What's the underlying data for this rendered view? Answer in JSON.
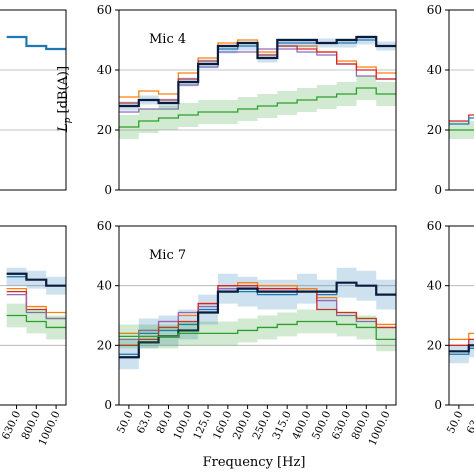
{
  "chart_data": {
    "type": "line",
    "style": "step",
    "xlabel": "Frequency [Hz]",
    "ylabel": "L_p [dB(A)]",
    "ylim": [
      0,
      60
    ],
    "yticks": [
      0,
      20,
      40,
      60
    ],
    "grid": "horizontal",
    "categories": [
      "50.0",
      "63.0",
      "80.0",
      "100.0",
      "125.0",
      "160.0",
      "200.0",
      "250.0",
      "315.0",
      "400.0",
      "500.0",
      "630.0",
      "800.0",
      "1000.0"
    ],
    "colors": [
      "#1f77b4",
      "#ff7f0e",
      "#2ca02c",
      "#d62728",
      "#9467bd",
      "#0b1b3b"
    ],
    "panels": [
      {
        "id": "left-top",
        "title": "",
        "series": [
          {
            "color": "#1f77b4",
            "values": [
              null,
              null,
              null,
              null,
              null,
              null,
              null,
              null,
              null,
              null,
              null,
              51,
              48,
              47
            ]
          }
        ]
      },
      {
        "id": "mic4",
        "title": "Mic 4",
        "series": [
          {
            "color": "#ff7f0e",
            "values": [
              31,
              33,
              32,
              39,
              44,
              49,
              50,
              46,
              48,
              48,
              46,
              43,
              41,
              39
            ]
          },
          {
            "color": "#9467bd",
            "values": [
              26,
              27,
              27,
              35,
              41,
              46,
              46,
              47,
              47,
              46,
              45,
              42,
              38,
              37
            ]
          },
          {
            "color": "#d62728",
            "values": [
              29,
              30,
              30,
              37,
              43,
              48,
              49,
              45,
              48,
              47,
              46,
              42,
              40,
              37
            ]
          },
          {
            "color": "#1f77b4",
            "values": [
              28,
              30,
              29,
              36,
              42,
              47,
              48,
              44,
              49,
              49,
              49,
              49,
              50,
              48
            ],
            "band": 1.5
          },
          {
            "color": "#0b1b3b",
            "values": [
              28,
              30,
              29,
              36,
              42,
              48,
              49,
              44,
              50,
              50,
              49,
              50,
              51,
              48
            ]
          },
          {
            "color": "#2ca02c",
            "values": [
              21,
              23,
              24,
              25,
              26,
              26,
              27,
              28,
              29,
              30,
              31,
              32,
              34,
              32
            ],
            "band": 4
          }
        ]
      },
      {
        "id": "right-top",
        "title": "",
        "series": [
          {
            "color": "#2ca02c",
            "values": [
              20,
              20,
              24,
              null,
              null,
              null,
              null,
              null,
              null,
              null,
              null,
              null,
              null,
              null
            ],
            "band": 3
          },
          {
            "color": "#d62728",
            "values": [
              23,
              25,
              26,
              null,
              null,
              null,
              null,
              null,
              null,
              null,
              null,
              null,
              null,
              null
            ]
          },
          {
            "color": "#1f77b4",
            "values": [
              22,
              24,
              25,
              null,
              null,
              null,
              null,
              null,
              null,
              null,
              null,
              null,
              null,
              null
            ]
          }
        ]
      },
      {
        "id": "left-bottom",
        "title": "",
        "series": [
          {
            "color": "#1f77b4",
            "values": [
              null,
              null,
              null,
              null,
              null,
              null,
              null,
              null,
              null,
              null,
              null,
              43,
              42,
              40
            ],
            "band": 3
          },
          {
            "color": "#0b1b3b",
            "values": [
              null,
              null,
              null,
              null,
              null,
              null,
              null,
              null,
              null,
              null,
              null,
              44,
              42,
              40
            ]
          },
          {
            "color": "#ff7f0e",
            "values": [
              null,
              null,
              null,
              null,
              null,
              null,
              null,
              null,
              null,
              null,
              null,
              39,
              33,
              31
            ]
          },
          {
            "color": "#d62728",
            "values": [
              null,
              null,
              null,
              null,
              null,
              null,
              null,
              null,
              null,
              null,
              null,
              38,
              32,
              29
            ]
          },
          {
            "color": "#9467bd",
            "values": [
              null,
              null,
              null,
              null,
              null,
              null,
              null,
              null,
              null,
              null,
              null,
              37,
              31,
              29
            ]
          },
          {
            "color": "#2ca02c",
            "values": [
              null,
              null,
              null,
              null,
              null,
              null,
              null,
              null,
              null,
              null,
              null,
              30,
              28,
              26
            ],
            "band": 4
          }
        ]
      },
      {
        "id": "mic7",
        "title": "Mic 7",
        "series": [
          {
            "color": "#1f77b4",
            "values": [
              17,
              24,
              25,
              27,
              32,
              39,
              38,
              37,
              37,
              39,
              37,
              41,
              40,
              37
            ],
            "band": 5
          },
          {
            "color": "#ff7f0e",
            "values": [
              24,
              25,
              28,
              30,
              34,
              40,
              41,
              40,
              40,
              39,
              36,
              31,
              29,
              27
            ]
          },
          {
            "color": "#9467bd",
            "values": [
              22,
              25,
              28,
              31,
              33,
              39,
              39,
              39,
              39,
              38,
              35,
              30,
              28,
              26
            ]
          },
          {
            "color": "#d62728",
            "values": [
              20,
              22,
              26,
              28,
              34,
              40,
              40,
              39,
              39,
              38,
              32,
              31,
              29,
              26
            ]
          },
          {
            "color": "#0b1b3b",
            "values": [
              16,
              21,
              23,
              25,
              31,
              38,
              39,
              38,
              38,
              38,
              38,
              41,
              40,
              37
            ]
          },
          {
            "color": "#2ca02c",
            "values": [
              23,
              23,
              23,
              24,
              24,
              24,
              25,
              26,
              27,
              28,
              28,
              27,
              26,
              22
            ],
            "band": 4
          }
        ]
      },
      {
        "id": "right-bottom",
        "title": "",
        "series": [
          {
            "color": "#1f77b4",
            "values": [
              17,
              19,
              20,
              null,
              null,
              null,
              null,
              null,
              null,
              null,
              null,
              null,
              null,
              null
            ],
            "band": 3
          },
          {
            "color": "#ff7f0e",
            "values": [
              22,
              24,
              25,
              null,
              null,
              null,
              null,
              null,
              null,
              null,
              null,
              null,
              null,
              null
            ]
          },
          {
            "color": "#d62728",
            "values": [
              20,
              22,
              24,
              null,
              null,
              null,
              null,
              null,
              null,
              null,
              null,
              null,
              null,
              null
            ]
          },
          {
            "color": "#0b1b3b",
            "values": [
              18,
              20,
              22,
              null,
              null,
              null,
              null,
              null,
              null,
              null,
              null,
              null,
              null,
              null
            ]
          }
        ]
      }
    ]
  }
}
